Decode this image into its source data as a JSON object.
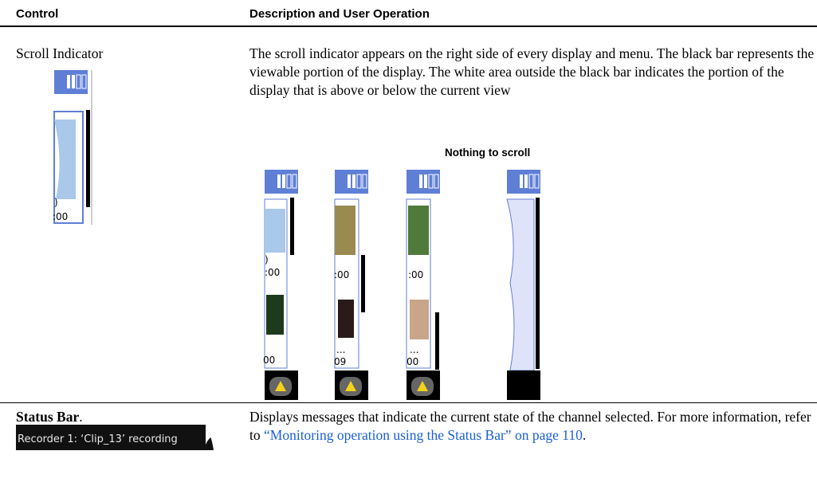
{
  "header": {
    "control": "Control",
    "description": "Description and User Operation"
  },
  "rows": [
    {
      "control": "Scroll Indicator",
      "description": "The scroll indicator appears on the right side of every display and menu. The black bar represents the viewable portion of the display. The white area outside the black bar indicates the portion of the display that is above or below the current view",
      "thumbnail_text": [
        ")",
        ":00"
      ],
      "figure_caption": "Nothing to scroll",
      "figure_panels": [
        [
          ")",
          ":00",
          "00"
        ],
        [
          ":00",
          "...",
          "09"
        ],
        [
          ":00",
          "...",
          "00"
        ]
      ]
    },
    {
      "control": "Status Bar",
      "control_suffix": ".",
      "thumbnail_text": "Recorder 1: ‘Clip_13’ recording",
      "description": "Displays messages that indicate the current state of the channel selected. For more information, refer to ",
      "link": "“Monitoring operation using the Status Bar” on page 110",
      "description_end": "."
    }
  ]
}
